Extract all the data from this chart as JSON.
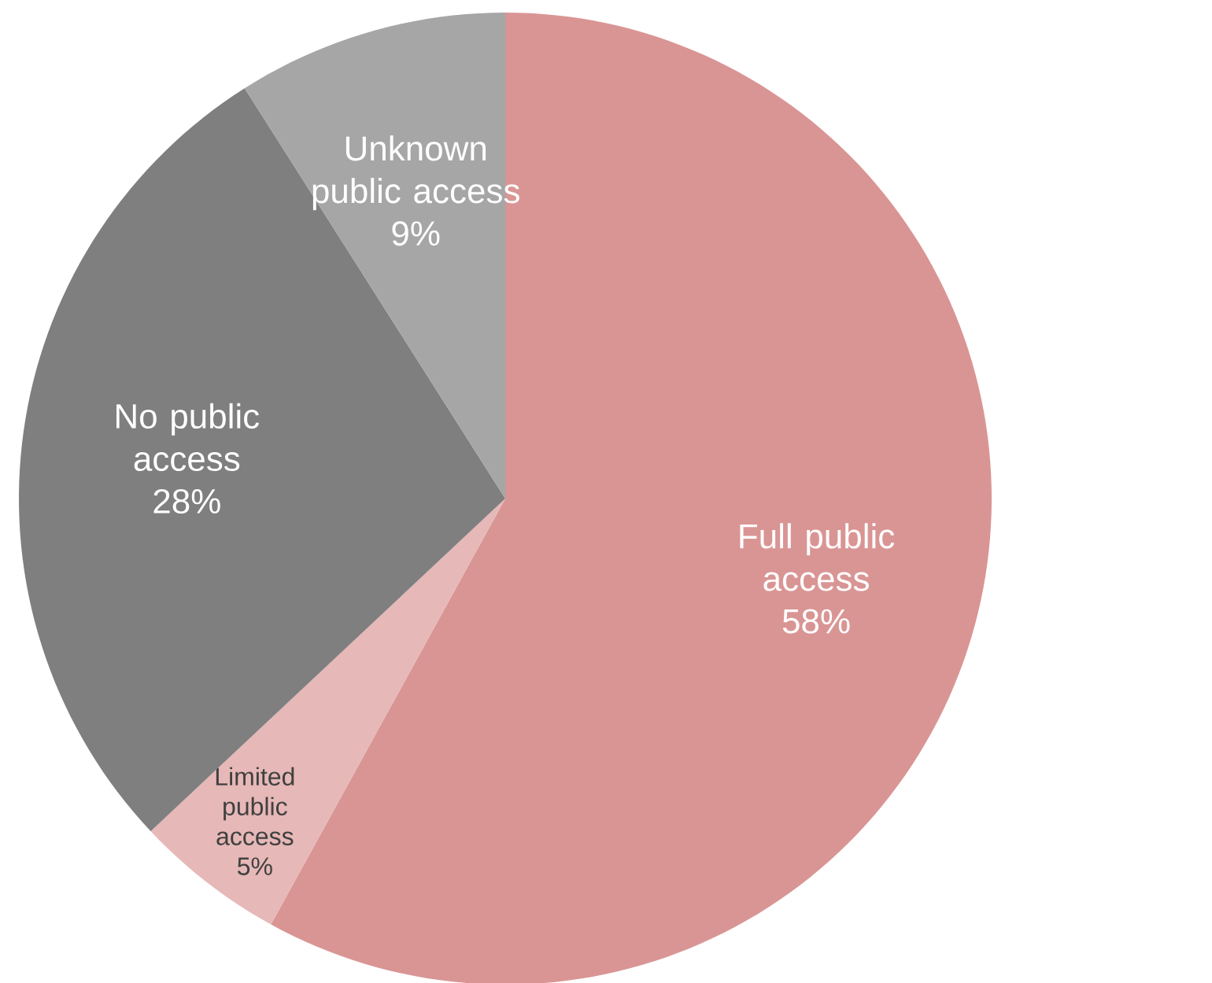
{
  "chart_data": {
    "type": "pie",
    "categories": [
      "Full public access",
      "Limited public access",
      "No public access",
      "Unknown public access"
    ],
    "values": [
      58,
      5,
      28,
      9
    ],
    "value_labels": [
      "58%",
      "5%",
      "28%",
      "9%"
    ],
    "colors": [
      "#d99594",
      "#e6b8b7",
      "#7f7f7f",
      "#a6a6a6"
    ]
  }
}
